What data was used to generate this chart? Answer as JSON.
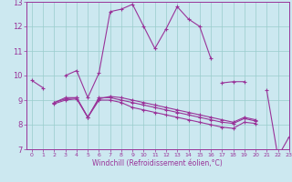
{
  "xlabel": "Windchill (Refroidissement éolien,°C)",
  "background_color": "#cce8f0",
  "grid_color": "#99cccc",
  "line_color": "#993399",
  "xlim": [
    -0.5,
    23
  ],
  "ylim": [
    7,
    13
  ],
  "yticks": [
    7,
    8,
    9,
    10,
    11,
    12,
    13
  ],
  "xticks": [
    0,
    1,
    2,
    3,
    4,
    5,
    6,
    7,
    8,
    9,
    10,
    11,
    12,
    13,
    14,
    15,
    16,
    17,
    18,
    19,
    20,
    21,
    22,
    23
  ],
  "series": [
    {
      "x": [
        0,
        1
      ],
      "y": [
        9.8,
        9.5
      ]
    },
    {
      "x": [
        3,
        4,
        5,
        6,
        7,
        8,
        9,
        10,
        11,
        12,
        13,
        14,
        15,
        16
      ],
      "y": [
        10.0,
        10.2,
        9.1,
        10.1,
        12.6,
        12.7,
        12.9,
        12.0,
        11.1,
        11.9,
        12.8,
        12.3,
        12.0,
        10.7
      ]
    },
    {
      "x": [
        17,
        18,
        19
      ],
      "y": [
        9.7,
        9.75,
        9.75
      ]
    },
    {
      "x": [
        2,
        3,
        4,
        5,
        6,
        7,
        8,
        9,
        10,
        11,
        12,
        13,
        14,
        15,
        16,
        17,
        18,
        19,
        20
      ],
      "y": [
        8.9,
        9.1,
        9.1,
        8.3,
        9.0,
        9.0,
        8.9,
        8.7,
        8.6,
        8.5,
        8.4,
        8.3,
        8.2,
        8.1,
        8.0,
        7.9,
        7.85,
        8.1,
        8.05
      ]
    },
    {
      "x": [
        2,
        3,
        4,
        5,
        6,
        7,
        8,
        9,
        10,
        11,
        12,
        13,
        14,
        15,
        16,
        17,
        18,
        19,
        20
      ],
      "y": [
        8.9,
        9.05,
        9.1,
        8.3,
        9.1,
        9.1,
        9.0,
        8.9,
        8.8,
        8.7,
        8.6,
        8.5,
        8.4,
        8.3,
        8.2,
        8.1,
        8.05,
        8.25,
        8.15
      ]
    },
    {
      "x": [
        2,
        3,
        4,
        5,
        6,
        7,
        8,
        9,
        10,
        11,
        12,
        13,
        14,
        15,
        16,
        17,
        18,
        19,
        20
      ],
      "y": [
        8.85,
        9.0,
        9.05,
        8.3,
        9.05,
        9.15,
        9.1,
        9.0,
        8.9,
        8.8,
        8.7,
        8.6,
        8.5,
        8.4,
        8.3,
        8.2,
        8.1,
        8.3,
        8.2
      ]
    },
    {
      "x": [
        21,
        22,
        23
      ],
      "y": [
        9.4,
        6.7,
        7.5
      ]
    }
  ]
}
